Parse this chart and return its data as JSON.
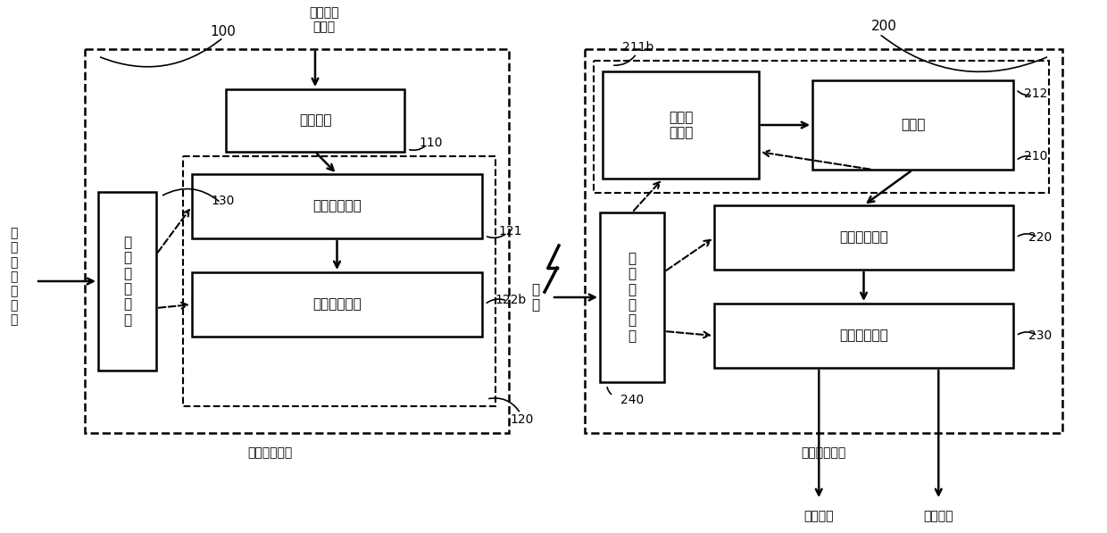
{
  "fig_width": 12.4,
  "fig_height": 5.97,
  "bg_color": "#ffffff",
  "left_label": "直\n流\n侧\n母\n线\n电\n压",
  "top_left_label": "直流侧母\n线电压",
  "module1_label": "高压检测模块",
  "module2_label": "低压接收模块",
  "module1_id": "100",
  "module2_id": "200",
  "box_110_label": "分压电路",
  "box_110_id": "110",
  "box_121_label": "压频转换电路",
  "box_121_id": "121",
  "box_122b_label": "无线发讯电路",
  "box_122b_id": "122b",
  "box_130_label": "第\n一\n电\n源\n电\n路",
  "box_130_id": "130",
  "box_211b_label": "无线收\n讯电路",
  "box_211b_id": "211b",
  "box_212_label": "单片机",
  "box_212_id": "212",
  "box_210_id": "210",
  "box_220_label": "数模转换电路",
  "box_220_id": "220",
  "box_230_label": "信号输出电路",
  "box_230_id": "230",
  "box_240_label": "第\n二\n电\n源\n电\n路",
  "box_240_id": "240",
  "output_analog": "模拟输出",
  "output_digital": "数字输出",
  "shi_dian": "市\n电"
}
